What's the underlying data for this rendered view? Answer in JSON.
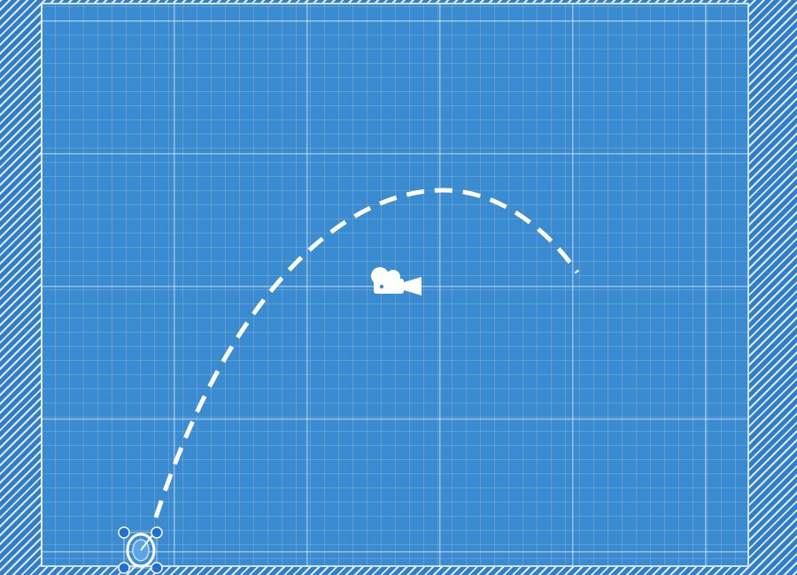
{
  "scene": {
    "background_color": "#3a8bd0",
    "hatch_color": "#ffffff",
    "grid_color": "#ffffff",
    "trajectory_color": "#ffffff",
    "handle_color": "#1f6fd6"
  },
  "icons": {
    "camera": "movie-camera-icon",
    "sprite": "selected-object-icon",
    "handles": "resize-handle-icon"
  }
}
